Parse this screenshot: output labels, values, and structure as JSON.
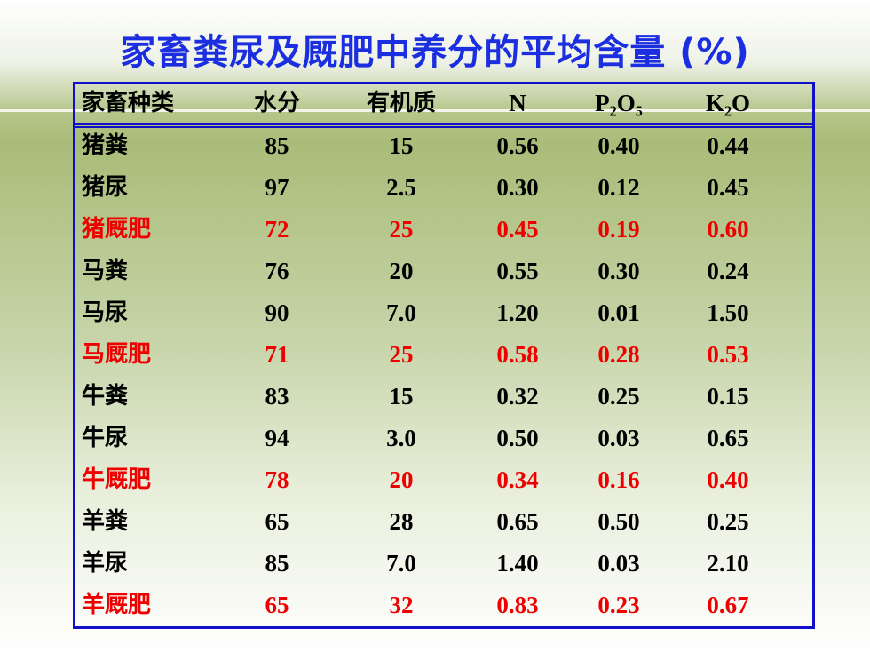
{
  "title": "家畜粪尿及厩肥中养分的平均含量 (%)",
  "table": {
    "header": [
      "家畜种类",
      "水分",
      "有机质",
      "N",
      "P₂O₅",
      "K₂O"
    ],
    "rows": [
      [
        "猪粪",
        "85",
        "15",
        "0.56",
        "0.40",
        "0.44"
      ],
      [
        "猪尿",
        "97",
        "2.5",
        "0.30",
        "0.12",
        "0.45"
      ],
      [
        "猪厩肥",
        "72",
        "25",
        "0.45",
        "0.19",
        "0.60"
      ],
      [
        "马粪",
        "76",
        "20",
        "0.55",
        "0.30",
        "0.24"
      ],
      [
        "马尿",
        "90",
        "7.0",
        "1.20",
        "0.01",
        "1.50"
      ],
      [
        "马厩肥",
        "71",
        "25",
        "0.58",
        "0.28",
        "0.53"
      ],
      [
        "牛粪",
        "83",
        "15",
        "0.32",
        "0.25",
        "0.15"
      ],
      [
        "牛尿",
        "94",
        "3.0",
        "0.50",
        "0.03",
        "0.65"
      ],
      [
        "牛厩肥",
        "78",
        "20",
        "0.34",
        "0.16",
        "0.40"
      ],
      [
        "羊粪",
        "65",
        "28",
        "0.65",
        "0.50",
        "0.25"
      ],
      [
        "羊尿",
        "85",
        "7.0",
        "1.40",
        "0.03",
        "2.10"
      ],
      [
        "羊厩肥",
        "65",
        "32",
        "0.83",
        "0.23",
        "0.67"
      ]
    ]
  }
}
